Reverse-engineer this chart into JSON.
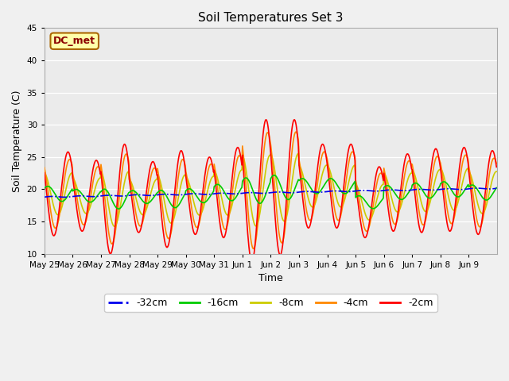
{
  "title": "Soil Temperatures Set 3",
  "xlabel": "Time",
  "ylabel": "Soil Temperature (C)",
  "ylim": [
    10,
    45
  ],
  "yticks": [
    10,
    15,
    20,
    25,
    30,
    35,
    40,
    45
  ],
  "annotation": "DC_met",
  "fig_facecolor": "#f0f0f0",
  "plot_facecolor": "#ebebeb",
  "legend_labels": [
    "-32cm",
    "-16cm",
    "-8cm",
    "-4cm",
    "-2cm"
  ],
  "legend_colors": [
    "#0000ee",
    "#00cc00",
    "#cccc00",
    "#ff8800",
    "#ff0000"
  ],
  "x_tick_labels": [
    "May 25",
    "May 26",
    "May 27",
    "May 28",
    "May 29",
    "May 30",
    "May 31",
    "Jun 1",
    "Jun 2",
    "Jun 3",
    "Jun 4",
    "Jun 5",
    "Jun 6",
    "Jun 7",
    "Jun 8",
    "Jun 9"
  ],
  "n_days": 16,
  "pts_per_day": 48,
  "base_temps": [
    19.3,
    19.0,
    18.5,
    18.8,
    18.5,
    19.0,
    19.5,
    19.8,
    20.3,
    20.5,
    20.5,
    18.0,
    19.5,
    19.8,
    20.0,
    19.5
  ],
  "amp_2cm": [
    6.5,
    5.5,
    8.5,
    5.5,
    7.5,
    6.0,
    7.0,
    11.0,
    10.5,
    6.5,
    6.5,
    5.5,
    6.0,
    6.5,
    6.5,
    6.5
  ],
  "amp_4cm_ratio": 0.82,
  "amp_8cm_ratio": 0.5,
  "amp_16cm_ratio": 0.18,
  "phase_4cm_lag": 0.35,
  "phase_8cm_lag": 0.9,
  "phase_16cm_lag": 1.8,
  "peak_hour": 14.0,
  "depth32_base": 18.8,
  "depth32_slope": 0.085,
  "depth32_amp": 0.08
}
